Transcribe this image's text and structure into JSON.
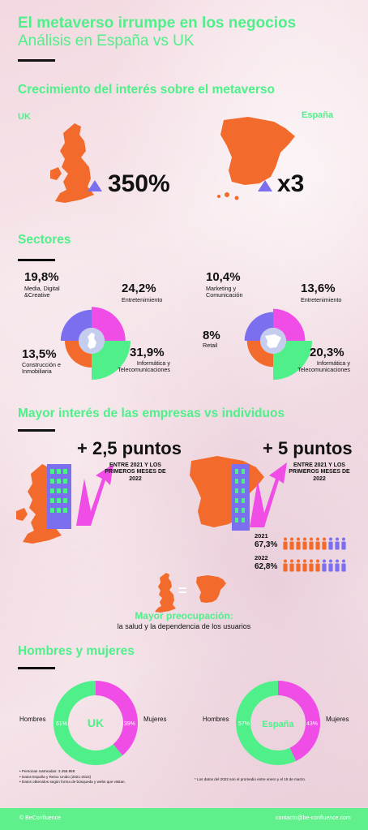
{
  "title": {
    "line1": "El metaverso irrumpe en los negocios",
    "line2": "Análisis en España vs UK"
  },
  "growth": {
    "heading": "Crecimiento del interés sobre el metaverso",
    "uk_label": "UK",
    "uk_value": "350%",
    "es_label": "España",
    "es_value": "x3"
  },
  "sectors": {
    "heading": "Sectores",
    "uk": [
      {
        "value": "19,8%",
        "label": "Media, Digital &Creative"
      },
      {
        "value": "24,2%",
        "label": "Entretenimiento"
      },
      {
        "value": "13,5%",
        "label": "Construcción e Inmobiliaria"
      },
      {
        "value": "31,9%",
        "label": "Informática y Telecomunicaciones"
      }
    ],
    "es": [
      {
        "value": "10,4%",
        "label": "Marketing y Comunicación"
      },
      {
        "value": "13,6%",
        "label": "Entretenimiento"
      },
      {
        "value": "8%",
        "label": "Retail"
      },
      {
        "value": "20,3%",
        "label": "Informática y Telecomunicaciones"
      }
    ]
  },
  "companies": {
    "heading": "Mayor interés de las empresas vs individuos",
    "uk_value": "+ 2,5 puntos",
    "uk_note": "ENTRE 2021 Y LOS PRIMEROS MESES DE 2022",
    "es_value": "+ 5 puntos",
    "es_note": "ENTRE 2021 Y LOS PRIMEROS MESES DE 2022",
    "stats": [
      {
        "year": "2021",
        "value": "67,3%",
        "orange": 7,
        "blue": 3
      },
      {
        "year": "2022",
        "value": "62,8%",
        "orange": 6,
        "blue": 4
      }
    ],
    "equals": "=",
    "concern_title": "Mayor preocupación:",
    "concern_text": "la salud y la dependencia de los usuarios"
  },
  "gender": {
    "heading": "Hombres y mujeres",
    "uk": {
      "center": "UK",
      "men_label": "Hombres",
      "women_label": "Mujeres",
      "men_pct": "61%",
      "women_pct": "39%",
      "men_value": 61,
      "women_value": 39
    },
    "es": {
      "center": "España",
      "men_label": "Hombres",
      "women_label": "Mujeres",
      "men_pct": "57%",
      "women_pct": "43%",
      "men_value": 57,
      "women_value": 43
    }
  },
  "notes": {
    "left": [
      "• Personas rastreadas: 3.456.959",
      "• Datos España y Reino Unido (2021-2022)",
      "• Datos obtenidos según forma de búsqueda y webs que visitan."
    ],
    "right": "* Los datos del 2022 son el promedio entre enero y el 18 de marzo."
  },
  "footer": {
    "left": "© BeConfluence",
    "right": "contacto@be-confluence.com"
  },
  "colors": {
    "green": "#4ff08a",
    "orange": "#f26b2c",
    "purple": "#7b6ff0",
    "magenta": "#f04ce6",
    "lightblue": "#c5cdee"
  }
}
